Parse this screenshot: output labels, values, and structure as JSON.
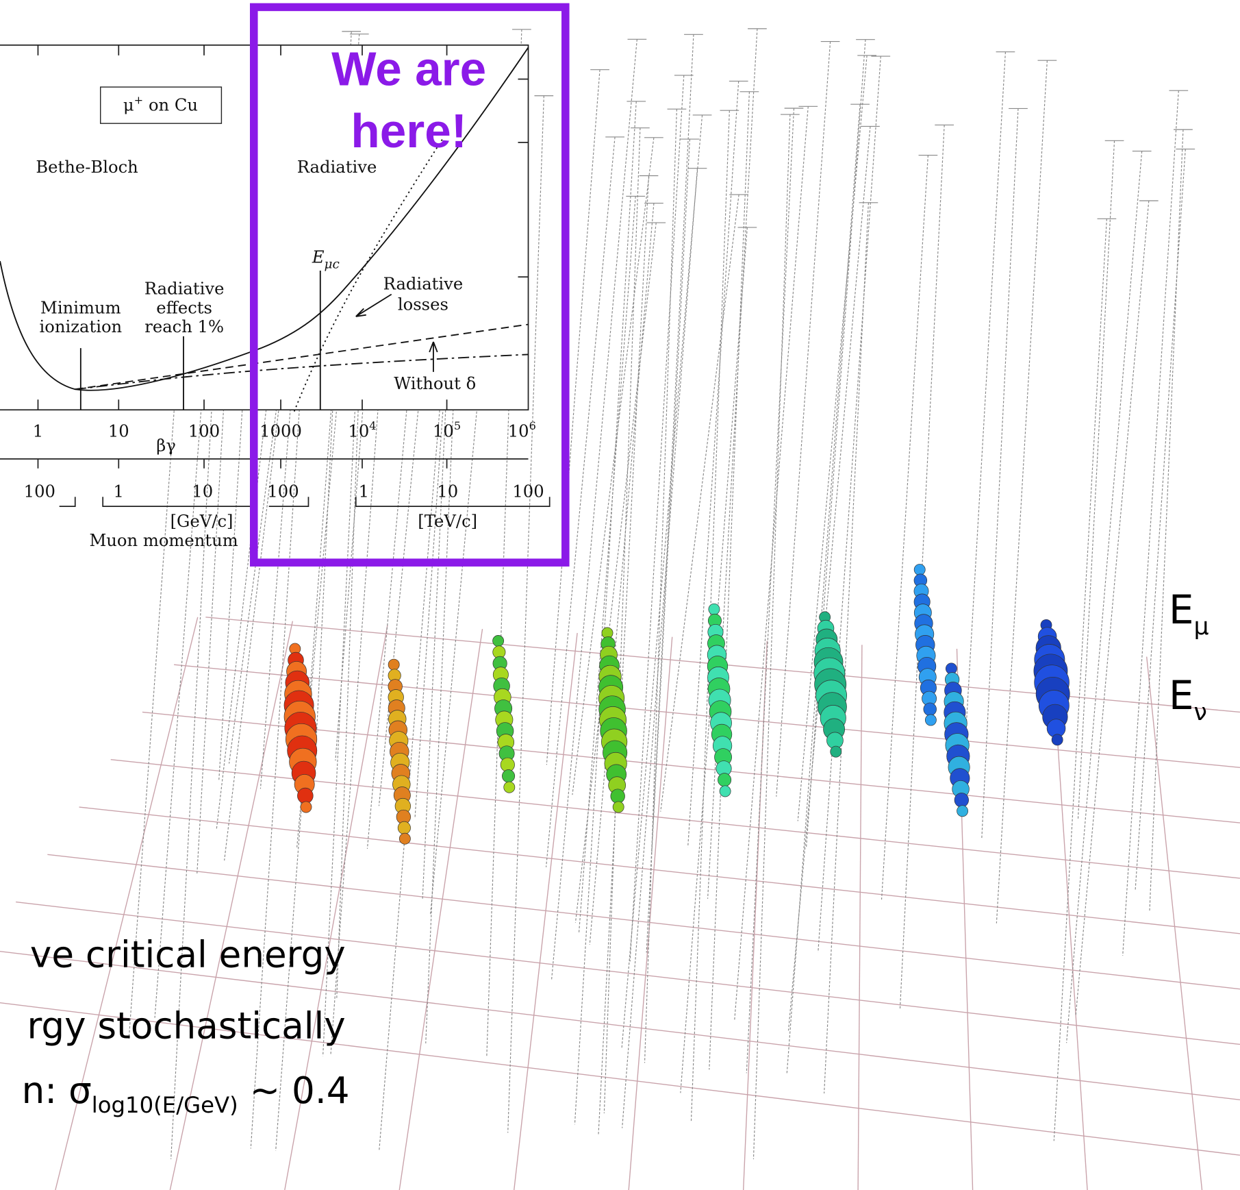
{
  "plot": {
    "label_box": {
      "base": "μ",
      "sup": "+",
      "rest": " on Cu"
    },
    "regions": [
      "Bethe-Bloch",
      "Radiative"
    ],
    "critical_energy": {
      "base": "E",
      "sub": "μc"
    },
    "radiative_losses": [
      "Radiative",
      "losses"
    ],
    "minimum_ionization": [
      "Minimum",
      "ionization"
    ],
    "radiative_effects": [
      "Radiative",
      "effects",
      "reach 1%"
    ],
    "without_delta": "Without δ",
    "x_ticks": [
      {
        "base": "1"
      },
      {
        "base": "10"
      },
      {
        "base": "100"
      },
      {
        "base": "1000"
      },
      {
        "base": "10",
        "exp": "4"
      },
      {
        "base": "10",
        "exp": "5"
      },
      {
        "base": "10",
        "exp": "6"
      }
    ],
    "x_label": "βγ",
    "momentum_ticks": [
      "100",
      "1",
      "10",
      "100",
      "1",
      "10",
      "100"
    ],
    "gev_unit": "[GeV/c]",
    "momentum_label": "Muon momentum",
    "tev_unit": "[TeV/c]"
  },
  "highlight": [
    "We are",
    "here!"
  ],
  "energies": [
    {
      "base": "E",
      "sub": "μ"
    },
    {
      "base": "E",
      "sub": "ν"
    }
  ],
  "bullets": [
    {
      "text": "ve critical energy"
    },
    {
      "text": "rgy stochastically"
    },
    {
      "text": "n: σ",
      "sub": "log10(E/GeV)",
      "rest": " ~ 0.4"
    }
  ]
}
